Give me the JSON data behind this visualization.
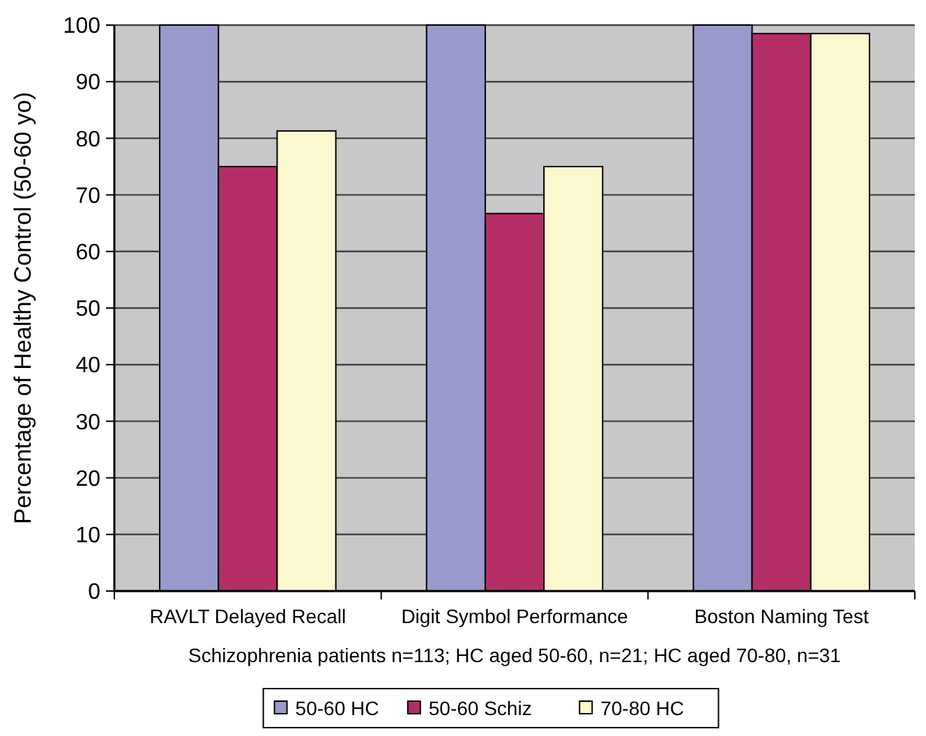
{
  "chart_data": {
    "type": "bar",
    "ylabel": "Percentage of Healthy Control (50-60 yo)",
    "xlabel": "Schizophrenia patients n=113; HC aged 50-60, n=21; HC aged 70-80, n=31",
    "categories": [
      "RAVLT Delayed Recall",
      "Digit Symbol Performance",
      "Boston Naming Test"
    ],
    "series": [
      {
        "name": "50-60 HC",
        "color": "#9999cc",
        "values": [
          100,
          100,
          100
        ]
      },
      {
        "name": "50-60 Schiz",
        "color": "#b32e66",
        "values": [
          75,
          66.7,
          98.5
        ]
      },
      {
        "name": "70-80 HC",
        "color": "#fbf8cf",
        "values": [
          81.3,
          75,
          98.5
        ]
      }
    ],
    "ylim": [
      0,
      100
    ],
    "yticks": [
      0,
      10,
      20,
      30,
      40,
      50,
      60,
      70,
      80,
      90,
      100
    ],
    "grid": "y",
    "legend": "bottom"
  }
}
